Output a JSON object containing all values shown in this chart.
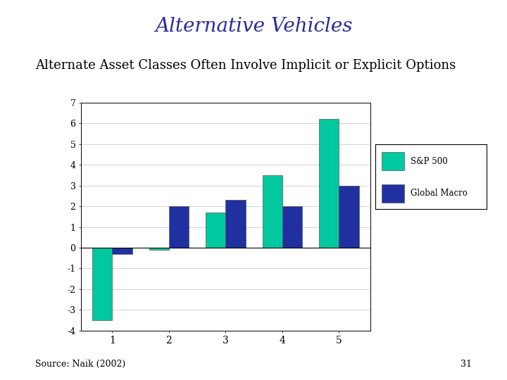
{
  "title": "Alternative Vehicles",
  "subtitle": "Alternate Asset Classes Often Involve Implicit or Explicit Options",
  "source_text": "Source: Naik (2002)",
  "page_number": "31",
  "categories": [
    1,
    2,
    3,
    4,
    5
  ],
  "sp500": [
    -3.5,
    -0.1,
    1.7,
    3.5,
    6.2
  ],
  "global_macro": [
    -0.3,
    2.0,
    2.3,
    2.0,
    3.0
  ],
  "sp500_color": "#00C8A0",
  "global_macro_color": "#2030A0",
  "title_color": "#2B2B9B",
  "background_color": "#FFFFFF",
  "ylim": [
    -4,
    7
  ],
  "yticks": [
    -4,
    -3,
    -2,
    -1,
    0,
    1,
    2,
    3,
    4,
    5,
    6,
    7
  ],
  "legend_sp500": "S&P 500",
  "legend_global": "Global Macro",
  "title_fontsize": 20,
  "subtitle_fontsize": 13,
  "bar_width": 0.35
}
